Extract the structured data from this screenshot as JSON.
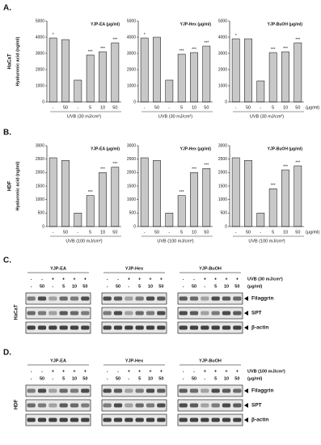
{
  "figure": {
    "panels": [
      {
        "label": "A.",
        "cell": "HaCaT",
        "ylabel": "Hyaluronic acid (ng/ml)",
        "unit": "(μg/ml)"
      },
      {
        "label": "B.",
        "cell": "HDF",
        "ylabel": "Hyaluronic acid (ng/ml)",
        "unit": "(μg/ml)"
      }
    ]
  },
  "chart_data": [
    {
      "type": "bar",
      "title": "YJP-EA (μg/ml)",
      "xlabel": "UVB (30 mJ/cm²)",
      "categories": [
        "-",
        "50",
        "-",
        "5",
        "10",
        "50"
      ],
      "values": [
        3950,
        3850,
        1350,
        2900,
        3100,
        3650
      ],
      "significance": [
        "*",
        null,
        null,
        "***",
        "***",
        "***"
      ],
      "ylim": [
        0,
        5000
      ],
      "yticks": [
        0,
        1000,
        2000,
        3000,
        4000,
        5000
      ],
      "color": "#c8c8c8"
    },
    {
      "type": "bar",
      "title": "YJP-Hex (μg/ml)",
      "xlabel": "UVB (30 mJ/cm²)",
      "categories": [
        "-",
        "50",
        "-",
        "5",
        "10",
        "50"
      ],
      "values": [
        3950,
        4000,
        1350,
        2950,
        3050,
        3450
      ],
      "significance": [
        "*",
        null,
        null,
        "***",
        "***",
        "***"
      ],
      "ylim": [
        0,
        5000
      ],
      "yticks": [
        0,
        1000,
        2000,
        3000,
        4000,
        5000
      ],
      "color": "#c8c8c8"
    },
    {
      "type": "bar",
      "title": "YJP-BuOH (μg/ml)",
      "xlabel": "UVB (30 mJ/cm²)",
      "categories": [
        "-",
        "50",
        "-",
        "5",
        "10",
        "50"
      ],
      "values": [
        3900,
        3900,
        1300,
        3050,
        3100,
        3650
      ],
      "significance": [
        "*",
        null,
        null,
        "***",
        "***",
        "***"
      ],
      "ylim": [
        0,
        5000
      ],
      "yticks": [
        0,
        1000,
        2000,
        3000,
        4000,
        5000
      ],
      "color": "#c8c8c8"
    },
    {
      "type": "bar",
      "title": "YJP-EA (μg/ml)",
      "xlabel": "UVB (100 mJ/cm²)",
      "categories": [
        "-",
        "50",
        "-",
        "5",
        "10",
        "50"
      ],
      "values": [
        2550,
        2450,
        500,
        1150,
        2000,
        2200
      ],
      "significance": [
        null,
        null,
        null,
        "***",
        "***",
        "***"
      ],
      "ylim": [
        0,
        3000
      ],
      "yticks": [
        0,
        500,
        1000,
        1500,
        2000,
        2500,
        3000
      ],
      "color": "#c8c8c8"
    },
    {
      "type": "bar",
      "title": "YJP-Hex (μg/ml)",
      "xlabel": "UVB (100 mJ/cm²)",
      "categories": [
        "-",
        "50",
        "-",
        "5",
        "10",
        "50"
      ],
      "values": [
        2550,
        2450,
        500,
        1150,
        2000,
        2150
      ],
      "significance": [
        null,
        null,
        null,
        "***",
        "***",
        "***"
      ],
      "ylim": [
        0,
        3000
      ],
      "yticks": [
        0,
        500,
        1000,
        1500,
        2000,
        2500,
        3000
      ],
      "color": "#c8c8c8"
    },
    {
      "type": "bar",
      "title": "YJP-BuOH (μg/ml)",
      "xlabel": "UVB (100 mJ/cm²)",
      "categories": [
        "-",
        "50",
        "-",
        "5",
        "10",
        "50"
      ],
      "values": [
        2550,
        2450,
        500,
        1400,
        2100,
        2250
      ],
      "significance": [
        null,
        null,
        null,
        "***",
        "***",
        "***"
      ],
      "ylim": [
        0,
        3000
      ],
      "yticks": [
        0,
        500,
        1000,
        1500,
        2000,
        2500,
        3000
      ],
      "color": "#c8c8c8"
    }
  ],
  "blots": [
    {
      "label": "C.",
      "cell": "HaCaT",
      "uvb": "UVB (30 mJ/cm²)",
      "unit": "(μg/ml)",
      "bands": [
        "Filaggrin",
        "SPT",
        "β-actin"
      ],
      "groups": [
        {
          "name": "YJP-EA",
          "uvb": [
            "-",
            "-",
            "+",
            "+",
            "+",
            "+"
          ],
          "conc": [
            "-",
            "50",
            "-",
            "5",
            "10",
            "50"
          ]
        },
        {
          "name": "YJP-Hex",
          "uvb": [
            "-",
            "-",
            "+",
            "+",
            "+",
            "+"
          ],
          "conc": [
            "-",
            "50",
            "-",
            "5",
            "10",
            "50"
          ]
        },
        {
          "name": "YJP-BuOH",
          "uvb": [
            "-",
            "-",
            "+",
            "+",
            "+",
            "+"
          ],
          "conc": [
            "-",
            "50",
            "-",
            "5",
            "10",
            "50"
          ]
        }
      ]
    },
    {
      "label": "D.",
      "cell": "HDF",
      "uvb": "UVB (100 mJ/cm²)",
      "unit": "(μg/ml)",
      "bands": [
        "Filaggrin",
        "SPT",
        "β-actin"
      ],
      "groups": [
        {
          "name": "YJP-EA",
          "uvb": [
            "-",
            "-",
            "+",
            "+",
            "+",
            "+"
          ],
          "conc": [
            "-",
            "50",
            "-",
            "5",
            "10",
            "50"
          ]
        },
        {
          "name": "YJP-Hex",
          "uvb": [
            "-",
            "-",
            "+",
            "+",
            "+",
            "+"
          ],
          "conc": [
            "-",
            "50",
            "-",
            "5",
            "10",
            "50"
          ]
        },
        {
          "name": "YJP-BuOH",
          "uvb": [
            "-",
            "-",
            "+",
            "+",
            "+",
            "+"
          ],
          "conc": [
            "-",
            "50",
            "-",
            "5",
            "10",
            "50"
          ]
        }
      ]
    }
  ]
}
